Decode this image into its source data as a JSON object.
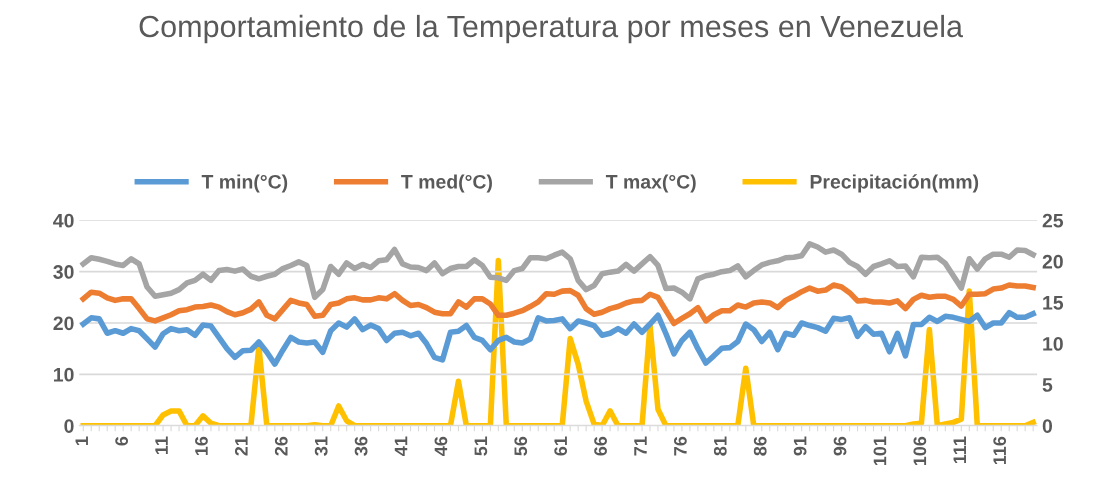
{
  "chart_data": {
    "type": "line",
    "title": "Comportamiento de la Temperatura por meses en Venezuela",
    "categories": [
      "1",
      null,
      null,
      null,
      null,
      "6",
      null,
      null,
      null,
      null,
      "11",
      null,
      null,
      null,
      null,
      "16",
      null,
      null,
      null,
      null,
      "21",
      null,
      null,
      null,
      null,
      "26",
      null,
      null,
      null,
      null,
      "31",
      null,
      null,
      null,
      null,
      "36",
      null,
      null,
      null,
      null,
      "41",
      null,
      null,
      null,
      null,
      "46",
      null,
      null,
      null,
      null,
      "51",
      null,
      null,
      null,
      null,
      "56",
      null,
      null,
      null,
      null,
      "61",
      null,
      null,
      null,
      null,
      "66",
      null,
      null,
      null,
      null,
      "71",
      null,
      null,
      null,
      null,
      "76",
      null,
      null,
      null,
      null,
      "81",
      null,
      null,
      null,
      null,
      "86",
      null,
      null,
      null,
      null,
      "91",
      null,
      null,
      null,
      null,
      "96",
      null,
      null,
      null,
      null,
      "101",
      null,
      null,
      null,
      null,
      "106",
      null,
      null,
      null,
      null,
      "111",
      null,
      null,
      null,
      null,
      "116",
      null,
      null,
      null,
      null
    ],
    "series": [
      {
        "name": "T min(°C)",
        "color": "#5b9bd5",
        "values": [
          19.8,
          21.0,
          20.8,
          18.0,
          18.5,
          18.0,
          18.9,
          18.5,
          16.9,
          15.3,
          17.9,
          18.9,
          18.5,
          18.7,
          17.6,
          19.6,
          19.4,
          17.2,
          15.0,
          13.3,
          14.6,
          14.7,
          16.3,
          14.3,
          12.0,
          14.7,
          17.2,
          16.3,
          16.1,
          16.3,
          14.3,
          18.5,
          20.0,
          19.2,
          20.8,
          18.7,
          19.6,
          18.9,
          16.6,
          18.0,
          18.2,
          17.5,
          18.0,
          16.0,
          13.3,
          12.8,
          18.2,
          18.4,
          19.5,
          17.2,
          16.6,
          14.8,
          16.6,
          17.2,
          16.3,
          16.1,
          16.9,
          21.0,
          20.4,
          20.5,
          20.8,
          18.9,
          20.4,
          20.0,
          19.5,
          17.6,
          18.0,
          18.9,
          18.0,
          19.8,
          18.2,
          19.8,
          21.5,
          17.9,
          14.0,
          16.6,
          18.2,
          15.0,
          12.2,
          13.6,
          15.1,
          15.2,
          16.4,
          19.8,
          18.7,
          16.4,
          18.2,
          14.8,
          18.0,
          17.6,
          20.0,
          19.5,
          19.1,
          18.4,
          20.9,
          20.7,
          21.0,
          17.4,
          19.3,
          17.8,
          18.0,
          14.4,
          18.0,
          13.6,
          19.7,
          19.7,
          21.1,
          20.3,
          21.3,
          21.1,
          20.7,
          20.3,
          21.5,
          19.1,
          20.0,
          20.0,
          22.0,
          21.1,
          21.1,
          21.8
        ]
      },
      {
        "name": "T med(°C)",
        "color": "#ed7d31",
        "values": [
          24.7,
          26.0,
          25.8,
          24.9,
          24.4,
          24.7,
          24.7,
          22.8,
          20.8,
          20.4,
          21.0,
          21.6,
          22.4,
          22.6,
          23.1,
          23.2,
          23.5,
          23.1,
          22.2,
          21.6,
          22.0,
          22.7,
          24.1,
          21.5,
          20.8,
          22.6,
          24.4,
          23.9,
          23.6,
          21.3,
          21.5,
          23.6,
          23.9,
          24.7,
          24.9,
          24.5,
          24.5,
          24.9,
          24.7,
          25.7,
          24.4,
          23.4,
          23.6,
          23.0,
          22.1,
          21.8,
          21.8,
          24.1,
          23.1,
          24.7,
          24.7,
          23.7,
          21.5,
          21.5,
          21.9,
          22.4,
          23.2,
          24.1,
          25.7,
          25.6,
          26.2,
          26.3,
          25.4,
          22.8,
          21.7,
          22.1,
          22.8,
          23.2,
          23.9,
          24.3,
          24.4,
          25.6,
          25.0,
          22.4,
          19.9,
          20.9,
          21.8,
          23.0,
          20.4,
          21.6,
          22.4,
          22.4,
          23.5,
          23.1,
          23.9,
          24.1,
          23.9,
          23.0,
          24.4,
          25.2,
          26.1,
          26.8,
          26.2,
          26.4,
          27.4,
          27.0,
          25.9,
          24.3,
          24.4,
          24.1,
          24.1,
          23.9,
          24.3,
          22.8,
          24.6,
          25.4,
          25.0,
          25.2,
          25.2,
          24.6,
          23.3,
          25.6,
          25.6,
          25.7,
          26.6,
          26.8,
          27.4,
          27.2,
          27.2,
          26.9
        ]
      },
      {
        "name": "T max(°C)",
        "color": "#a5a5a5",
        "values": [
          31.5,
          32.7,
          32.4,
          32.0,
          31.5,
          31.2,
          32.5,
          31.5,
          27.0,
          25.2,
          25.5,
          25.8,
          26.5,
          27.8,
          28.3,
          29.5,
          28.3,
          30.2,
          30.4,
          30.1,
          30.5,
          29.1,
          28.6,
          29.1,
          29.5,
          30.6,
          31.2,
          31.9,
          31.2,
          25.0,
          26.5,
          31.0,
          29.5,
          31.7,
          30.6,
          31.4,
          30.8,
          32.1,
          32.3,
          34.3,
          31.5,
          30.9,
          30.8,
          30.2,
          31.7,
          29.6,
          30.6,
          31.0,
          31.0,
          32.3,
          31.2,
          28.9,
          28.8,
          28.3,
          30.2,
          30.6,
          32.7,
          32.7,
          32.5,
          33.2,
          33.8,
          32.5,
          28.3,
          26.5,
          27.3,
          29.6,
          29.9,
          30.1,
          31.4,
          30.1,
          31.5,
          32.9,
          31.2,
          26.7,
          26.8,
          26.0,
          24.7,
          28.6,
          29.2,
          29.5,
          30.0,
          30.2,
          31.1,
          29.0,
          30.2,
          31.3,
          31.8,
          32.1,
          32.7,
          32.8,
          33.1,
          35.4,
          34.8,
          33.8,
          34.2,
          33.4,
          31.8,
          31.0,
          29.5,
          31.0,
          31.5,
          32.1,
          31.0,
          31.1,
          29.0,
          32.8,
          32.7,
          32.8,
          31.6,
          29.2,
          26.8,
          32.5,
          30.5,
          32.5,
          33.4,
          33.4,
          32.8,
          34.2,
          34.1,
          33.3
        ]
      },
      {
        "name": "Precipitación(mm)",
        "color": "#ffc000",
        "axis": "y2",
        "values": [
          0,
          0,
          0,
          0,
          0,
          0,
          0,
          0,
          0,
          0,
          1.3,
          1.8,
          1.8,
          0,
          0,
          1.2,
          0.3,
          0,
          0,
          0,
          0,
          0,
          9.6,
          0,
          0,
          0,
          0,
          0,
          0,
          0.1,
          0,
          0,
          2.4,
          0.6,
          0,
          0,
          0,
          0,
          0,
          0,
          0,
          0,
          0,
          0,
          0,
          0,
          0,
          5.4,
          0,
          0,
          0,
          0,
          20.1,
          0,
          0,
          0,
          0,
          0,
          0,
          0,
          0,
          10.6,
          7.5,
          3.0,
          0.2,
          0,
          1.8,
          0,
          0,
          0,
          0,
          12.2,
          2.0,
          0,
          0,
          0,
          0,
          0,
          0,
          0,
          0,
          0,
          0,
          7.0,
          0,
          0,
          0,
          0,
          0,
          0,
          0,
          0,
          0,
          0,
          0,
          0,
          0,
          0,
          0,
          0,
          0,
          0,
          0,
          0,
          0.2,
          0.3,
          11.7,
          0,
          0.2,
          0.4,
          0.8,
          16.4,
          0,
          0,
          0,
          0,
          0,
          0,
          0,
          0.4
        ]
      }
    ],
    "ylim": [
      0,
      40
    ],
    "yticks": [
      0,
      10,
      20,
      30,
      40
    ],
    "y2lim": [
      0,
      25
    ],
    "y2ticks": [
      0,
      5,
      10,
      15,
      20,
      25
    ],
    "grid": "y",
    "legend": "top",
    "marker": "none",
    "line_style": "solid"
  }
}
